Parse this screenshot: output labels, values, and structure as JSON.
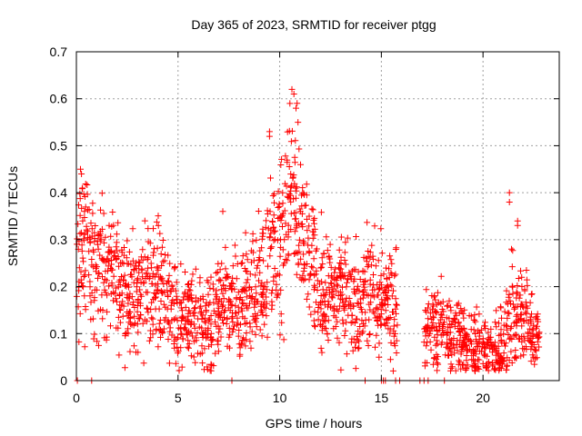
{
  "chart_data": {
    "type": "scatter",
    "title": "Day 365 of 2023, SRMTID for receiver ptgg",
    "xlabel": "GPS time / hours",
    "ylabel": "SRMTID / TECUs",
    "xlim": [
      0,
      23.75
    ],
    "ylim": [
      0,
      0.7
    ],
    "x_ticks": [
      0,
      5,
      10,
      15,
      20
    ],
    "y_ticks": [
      0,
      0.1,
      0.2,
      0.3,
      0.4,
      0.5,
      0.6,
      0.7
    ],
    "y_tick_labels": [
      "0",
      "0.1",
      "0.2",
      "0.3",
      "0.4",
      "0.5",
      "0.6",
      "0.7"
    ],
    "marker": "plus",
    "grid": true,
    "series_color": "#ff0000",
    "trend": [
      {
        "x": 0.0,
        "y": 0.21
      },
      {
        "x": 0.3,
        "y": 0.29
      },
      {
        "x": 0.6,
        "y": 0.27
      },
      {
        "x": 1.0,
        "y": 0.26
      },
      {
        "x": 1.5,
        "y": 0.23
      },
      {
        "x": 2.0,
        "y": 0.21
      },
      {
        "x": 2.5,
        "y": 0.18
      },
      {
        "x": 3.0,
        "y": 0.17
      },
      {
        "x": 3.5,
        "y": 0.19
      },
      {
        "x": 4.0,
        "y": 0.21
      },
      {
        "x": 4.5,
        "y": 0.17
      },
      {
        "x": 5.0,
        "y": 0.13
      },
      {
        "x": 5.5,
        "y": 0.15
      },
      {
        "x": 6.0,
        "y": 0.13
      },
      {
        "x": 6.5,
        "y": 0.1
      },
      {
        "x": 7.0,
        "y": 0.16
      },
      {
        "x": 7.5,
        "y": 0.17
      },
      {
        "x": 8.0,
        "y": 0.16
      },
      {
        "x": 8.5,
        "y": 0.19
      },
      {
        "x": 9.0,
        "y": 0.2
      },
      {
        "x": 9.5,
        "y": 0.26
      },
      {
        "x": 10.0,
        "y": 0.3
      },
      {
        "x": 10.3,
        "y": 0.35
      },
      {
        "x": 10.6,
        "y": 0.42
      },
      {
        "x": 10.9,
        "y": 0.32
      },
      {
        "x": 11.3,
        "y": 0.27
      },
      {
        "x": 11.8,
        "y": 0.22
      },
      {
        "x": 12.3,
        "y": 0.18
      },
      {
        "x": 13.0,
        "y": 0.19
      },
      {
        "x": 13.5,
        "y": 0.16
      },
      {
        "x": 14.0,
        "y": 0.18
      },
      {
        "x": 14.5,
        "y": 0.19
      },
      {
        "x": 15.0,
        "y": 0.18
      },
      {
        "x": 15.4,
        "y": 0.17
      },
      {
        "x": 15.8,
        "y": 0.17
      },
      {
        "x": 17.1,
        "y": 0.1
      },
      {
        "x": 17.6,
        "y": 0.11
      },
      {
        "x": 18.0,
        "y": 0.11
      },
      {
        "x": 18.5,
        "y": 0.1
      },
      {
        "x": 19.0,
        "y": 0.09
      },
      {
        "x": 19.5,
        "y": 0.07
      },
      {
        "x": 20.0,
        "y": 0.06
      },
      {
        "x": 20.5,
        "y": 0.06
      },
      {
        "x": 21.0,
        "y": 0.07
      },
      {
        "x": 21.3,
        "y": 0.14
      },
      {
        "x": 21.7,
        "y": 0.14
      },
      {
        "x": 22.0,
        "y": 0.15
      },
      {
        "x": 22.4,
        "y": 0.11
      },
      {
        "x": 22.8,
        "y": 0.08
      }
    ],
    "notable_points": [
      {
        "x": 0.2,
        "y": 0.45
      },
      {
        "x": 0.25,
        "y": 0.44
      },
      {
        "x": 0.3,
        "y": 0.41
      },
      {
        "x": 0.4,
        "y": 0.36
      },
      {
        "x": 7.2,
        "y": 0.36
      },
      {
        "x": 9.5,
        "y": 0.53
      },
      {
        "x": 9.5,
        "y": 0.52
      },
      {
        "x": 10.6,
        "y": 0.62
      },
      {
        "x": 10.7,
        "y": 0.61
      },
      {
        "x": 10.5,
        "y": 0.59
      },
      {
        "x": 10.8,
        "y": 0.58
      },
      {
        "x": 10.9,
        "y": 0.55
      },
      {
        "x": 21.3,
        "y": 0.4
      },
      {
        "x": 21.3,
        "y": 0.38
      },
      {
        "x": 21.7,
        "y": 0.34
      },
      {
        "x": 21.7,
        "y": 0.33
      },
      {
        "x": 21.4,
        "y": 0.28
      }
    ],
    "zero_points_x": [
      0.05,
      0.75,
      7.65,
      14.2,
      15.0,
      15.1,
      15.2,
      15.7,
      15.9,
      16.9,
      17.1,
      17.3,
      18.1
    ]
  }
}
